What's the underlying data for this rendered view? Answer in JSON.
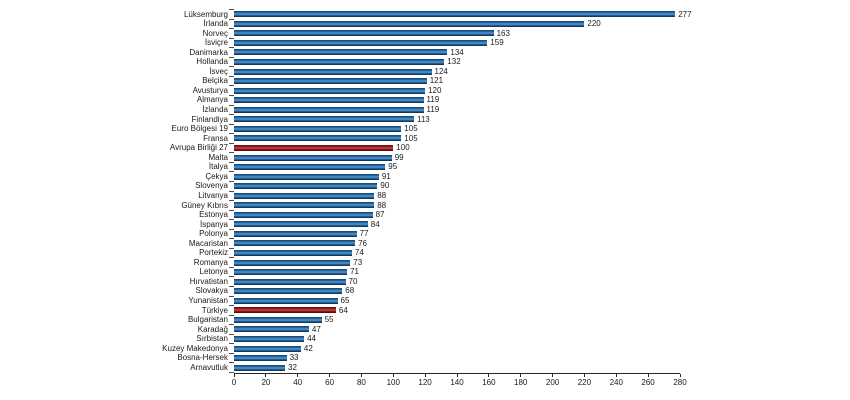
{
  "chart_data": {
    "type": "bar",
    "orientation": "horizontal",
    "title": "",
    "categories": [
      "Lüksemburg",
      "İrlanda",
      "Norveç",
      "İsviçre",
      "Danimarka",
      "Hollanda",
      "İsveç",
      "Belçika",
      "Avusturya",
      "Almanya",
      "İzlanda",
      "Finlandiya",
      "Euro Bölgesi 19",
      "Fransa",
      "Avrupa Birliği 27",
      "Malta",
      "İtalya",
      "Çekya",
      "Slovenya",
      "Litvanya",
      "Güney Kıbrıs",
      "Estonya",
      "İspanya",
      "Polonya",
      "Macaristan",
      "Portekiz",
      "Romanya",
      "Letonya",
      "Hırvatistan",
      "Slovakya",
      "Yunanistan",
      "Türkiye",
      "Bulgaristan",
      "Karadağ",
      "Sırbistan",
      "Kuzey Makedonya",
      "Bosna-Hersek",
      "Arnavutluk"
    ],
    "values": [
      277,
      220,
      163,
      159,
      134,
      132,
      124,
      121,
      120,
      119,
      119,
      113,
      105,
      105,
      100,
      99,
      95,
      91,
      90,
      88,
      88,
      87,
      84,
      77,
      76,
      74,
      73,
      71,
      70,
      68,
      65,
      64,
      55,
      47,
      44,
      42,
      33,
      32
    ],
    "highlight_indices": [
      14,
      31
    ],
    "bar_color": "#2e74b5",
    "highlight_color": "#a32024",
    "value_labels_shown": true,
    "xlabel": "",
    "ylabel": "",
    "xlim": [
      0,
      280
    ],
    "x_ticks": [
      0,
      20,
      40,
      60,
      80,
      100,
      120,
      140,
      160,
      180,
      200,
      220,
      240,
      260,
      280
    ],
    "grid": "off",
    "legend": "none",
    "axis_color": "#262626",
    "text_color": "#1a1a1a",
    "background_color": "#ffffff"
  }
}
